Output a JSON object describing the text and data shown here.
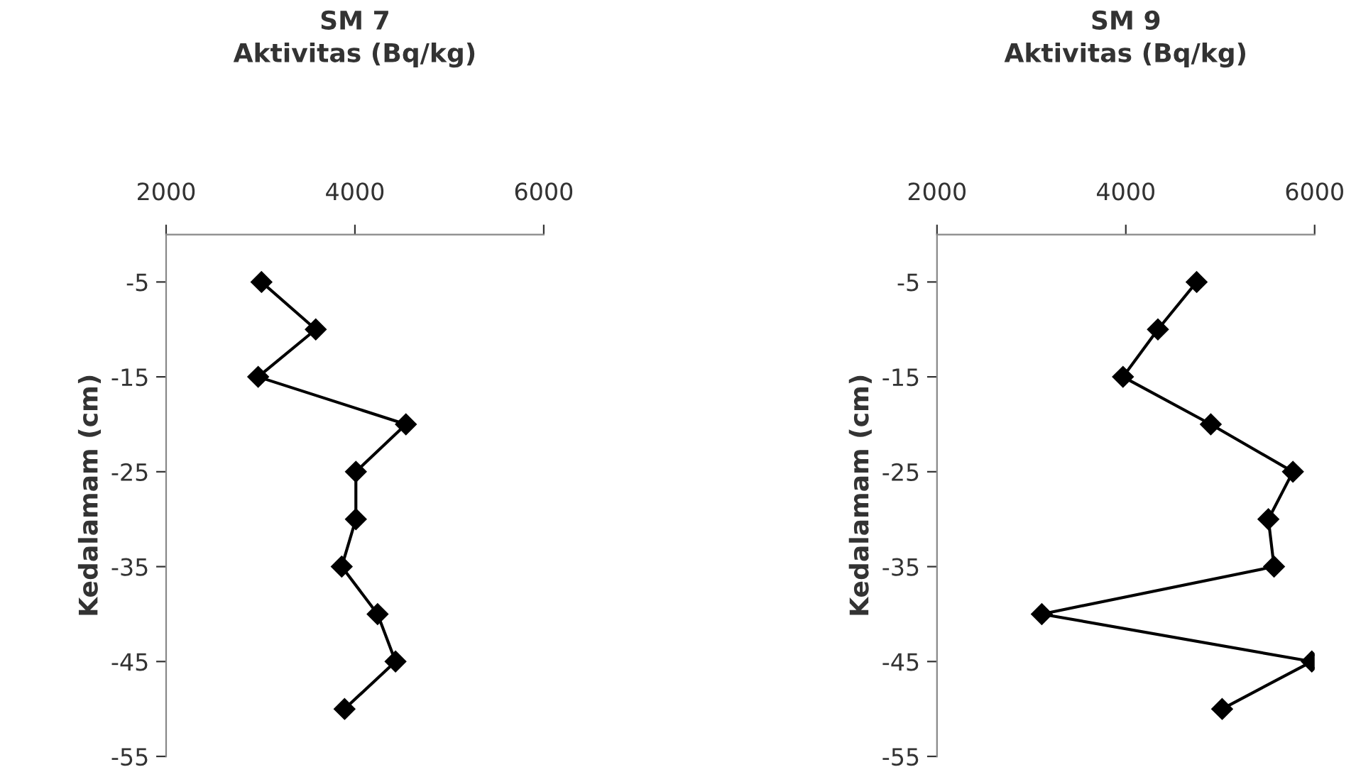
{
  "chart_data": [
    {
      "type": "line",
      "title": "SM 7",
      "xlabel": "Aktivitas (Bq/kg)",
      "ylabel": "Kedalamam (cm)",
      "x": [
        3010,
        3585,
        2975,
        4540,
        4010,
        4010,
        3860,
        4240,
        4430,
        3890
      ],
      "series": [
        {
          "color": "#000000",
          "values": [
            -5,
            -10,
            -15,
            -20,
            -25,
            -30,
            -35,
            -40,
            -45,
            -50
          ]
        }
      ],
      "xlim": [
        2000,
        6000
      ],
      "xticks": [
        2000,
        4000,
        6000
      ],
      "ylim": [
        -55,
        0
      ],
      "yticks": [
        -55,
        -45,
        -35,
        -25,
        -15,
        -5
      ],
      "marker": "diamond",
      "line_style": "solid",
      "grid": false,
      "legend": false
    },
    {
      "type": "line",
      "title": "SM 9",
      "xlabel": "Aktivitas (Bq/kg)",
      "ylabel": "Kedalamam (cm)",
      "x": [
        4750,
        4340,
        3970,
        4900,
        5770,
        5510,
        5570,
        3110,
        5970,
        5020
      ],
      "series": [
        {
          "color": "#000000",
          "values": [
            -5,
            -10,
            -15,
            -20,
            -25,
            -30,
            -35,
            -40,
            -45,
            -50
          ]
        }
      ],
      "xlim": [
        2000,
        6000
      ],
      "xticks": [
        2000,
        4000,
        6000
      ],
      "ylim": [
        -55,
        0
      ],
      "yticks": [
        -55,
        -45,
        -35,
        -25,
        -15,
        -5
      ],
      "marker": "diamond",
      "line_style": "solid",
      "grid": false,
      "legend": false
    }
  ]
}
